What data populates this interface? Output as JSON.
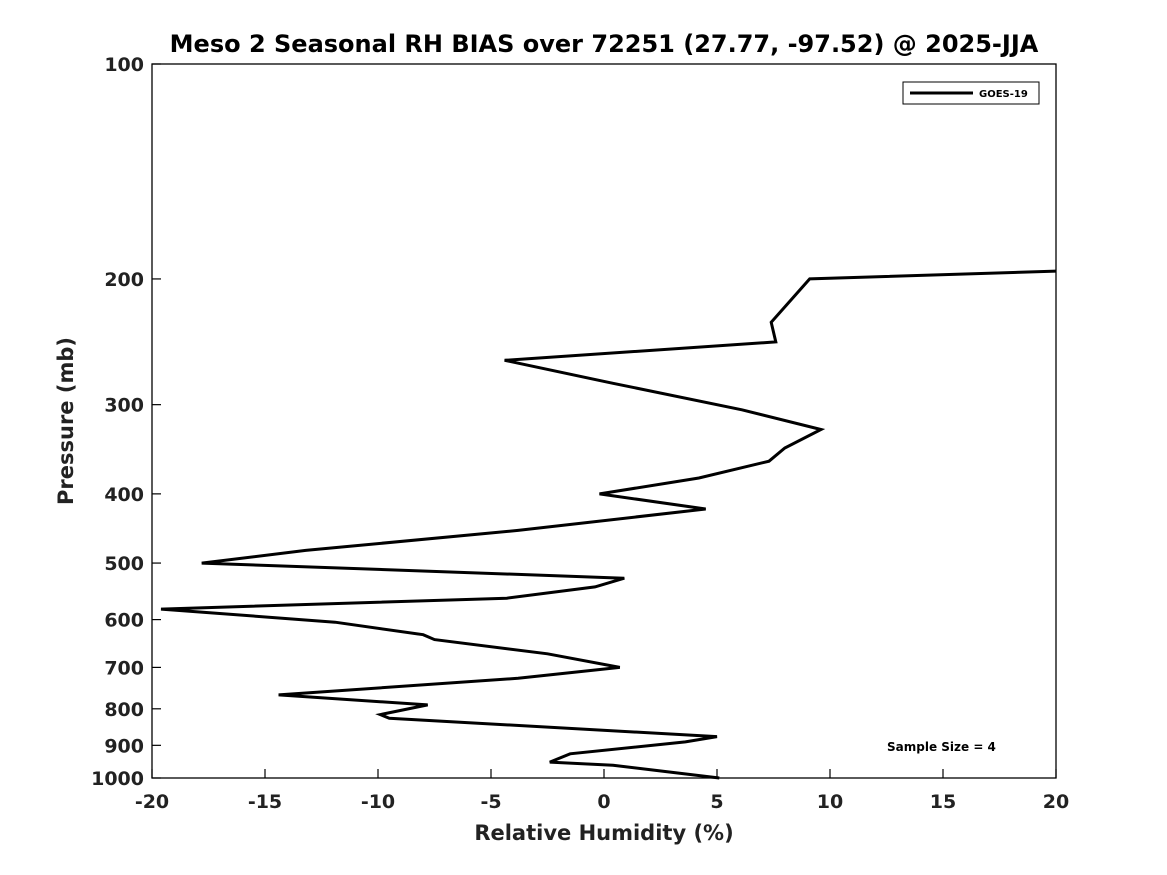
{
  "chart_data": {
    "type": "line",
    "title": "Meso 2 Seasonal RH BIAS over 72251 (27.77, -97.52) @ 2025-JJA",
    "xlabel": "Relative Humidity (%)",
    "ylabel": "Pressure (mb)",
    "xlim": [
      -20,
      20
    ],
    "ylim": [
      100,
      1000
    ],
    "y_scale": "log",
    "y_reversed": true,
    "x_ticks": [
      "-20",
      "-15",
      "-10",
      "-5",
      "0",
      "5",
      "10",
      "15",
      "20"
    ],
    "y_ticks": [
      "100",
      "200",
      "300",
      "400",
      "500",
      "600",
      "700",
      "800",
      "900",
      "1000"
    ],
    "grid": false,
    "legend_position": "top-right",
    "series": [
      {
        "name": "GOES-19",
        "color": "#000000",
        "x": [
          5.1,
          2.2,
          0.4,
          -2.4,
          -1.5,
          3.6,
          5.0,
          -9.5,
          -9.9,
          -7.8,
          -14.4,
          -3.8,
          0.7,
          -2.5,
          -7.5,
          -8.0,
          -11.9,
          -19.6,
          -4.3,
          -0.4,
          0.9,
          -17.8,
          -13.2,
          -3.8,
          4.5,
          -0.2,
          4.2,
          7.3,
          8.0,
          9.6,
          6.1,
          0.4,
          -4.4,
          7.6,
          7.4,
          9.1,
          20.0
        ],
        "y": [
          1000,
          975,
          960,
          950,
          925,
          890,
          875,
          825,
          815,
          790,
          765,
          725,
          700,
          670,
          640,
          630,
          605,
          580,
          560,
          540,
          525,
          500,
          480,
          450,
          420,
          400,
          380,
          360,
          345,
          325,
          305,
          280,
          260,
          245,
          230,
          200,
          195
        ]
      }
    ],
    "annotations": [
      "Sample Size = 4"
    ]
  }
}
